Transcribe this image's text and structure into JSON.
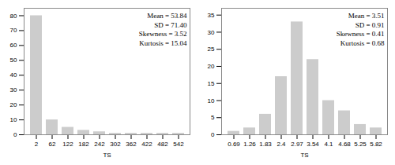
{
  "chart_data": [
    {
      "type": "bar",
      "categories": [
        "2",
        "62",
        "122",
        "182",
        "242",
        "302",
        "362",
        "422",
        "482",
        "542"
      ],
      "values": [
        80,
        10,
        5,
        3,
        2,
        1,
        1,
        1,
        1,
        1
      ],
      "xlabel": "TS",
      "ylim": [
        0,
        85
      ],
      "yticks": [
        0,
        10,
        20,
        30,
        40,
        50,
        60,
        70,
        80
      ],
      "annotation": "Mean = 53.84\nSD = 71.40\nSkewness = 3.52\nKurtosis = 15.04",
      "color": "#cccccc"
    },
    {
      "type": "bar",
      "categories": [
        "0.69",
        "1.26",
        "1.83",
        "2.4",
        "2.97",
        "3.54",
        "4.1",
        "4.68",
        "5.25",
        "5.82"
      ],
      "values": [
        1,
        2,
        6,
        17,
        33,
        22,
        10,
        7,
        3,
        2
      ],
      "xlabel": "TS",
      "ylim": [
        0,
        37
      ],
      "yticks": [
        0,
        5,
        10,
        15,
        20,
        25,
        30,
        35
      ],
      "annotation": "Mean = 3.51\nSD = 0.91\nSkewness = 0.41\nKurtosis = 0.68",
      "color": "#cccccc"
    }
  ]
}
